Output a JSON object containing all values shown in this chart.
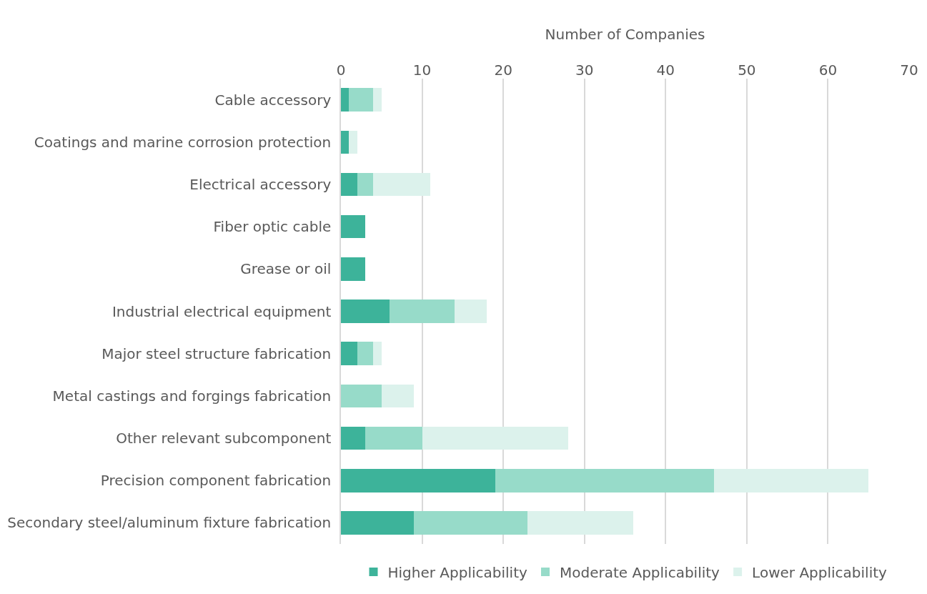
{
  "chart_data": {
    "type": "bar",
    "orientation": "horizontal",
    "stacked": true,
    "xlabel": "Number of Companies",
    "categories": [
      "Cable accessory",
      "Coatings and marine corrosion protection",
      "Electrical accessory",
      "Fiber optic cable",
      "Grease or oil",
      "Industrial electrical equipment",
      "Major steel structure fabrication",
      "Metal castings and forgings fabrication",
      "Other relevant subcomponent",
      "Precision component fabrication",
      "Secondary steel/aluminum fixture fabrication"
    ],
    "series": [
      {
        "name": "Higher Applicability",
        "color": "#3db39a",
        "values": [
          1,
          1,
          2,
          3,
          3,
          6,
          2,
          0,
          3,
          19,
          9
        ]
      },
      {
        "name": "Moderate Applicability",
        "color": "#97dbc9",
        "values": [
          3,
          0,
          2,
          0,
          0,
          8,
          2,
          5,
          7,
          27,
          14
        ]
      },
      {
        "name": "Lower Applicability",
        "color": "#dcf2ec",
        "values": [
          1,
          1,
          7,
          0,
          0,
          4,
          1,
          4,
          18,
          19,
          13
        ]
      }
    ],
    "xlim": [
      0,
      70
    ],
    "xticks": [
      0,
      10,
      20,
      30,
      40,
      50,
      60,
      70
    ],
    "grid": "x",
    "legend": "bottom"
  }
}
